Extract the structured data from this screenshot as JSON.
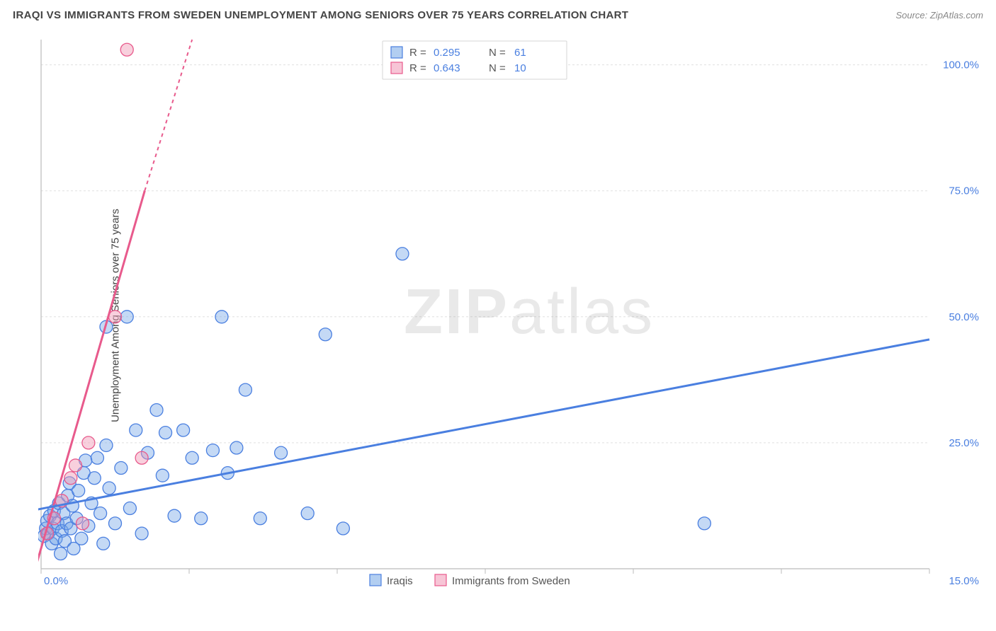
{
  "header": {
    "title": "IRAQI VS IMMIGRANTS FROM SWEDEN UNEMPLOYMENT AMONG SENIORS OVER 75 YEARS CORRELATION CHART",
    "source": "Source: ZipAtlas.com"
  },
  "watermark": {
    "bold": "ZIP",
    "rest": "atlas"
  },
  "yaxis": {
    "label": "Unemployment Among Seniors over 75 years"
  },
  "chart": {
    "type": "scatter",
    "background_color": "#ffffff",
    "grid_color": "#e0e0e0",
    "axis_color": "#bbbbbb",
    "xlim": [
      0,
      15
    ],
    "ylim": [
      0,
      105
    ],
    "x_ticks": [
      0,
      2.5,
      5,
      7.5,
      10,
      12.5,
      15
    ],
    "x_tick_labels": {
      "0": "0.0%",
      "15": "15.0%"
    },
    "y_ticks": [
      25,
      50,
      75,
      100
    ],
    "y_tick_labels": {
      "25": "25.0%",
      "50": "50.0%",
      "75": "75.0%",
      "100": "100.0%"
    },
    "origin_label": "0.0%",
    "marker_radius": 9,
    "marker_stroke_width": 1.3,
    "series": [
      {
        "name": "Iraqis",
        "color_fill": "rgba(115,165,230,0.42)",
        "color_stroke": "#4a7fe0",
        "r_value": "0.295",
        "n_value": "61",
        "trend": {
          "x1": -0.4,
          "y1": 11.0,
          "x2": 15.0,
          "y2": 45.5
        },
        "points": [
          [
            0.05,
            6.5
          ],
          [
            0.08,
            8.0
          ],
          [
            0.1,
            9.5
          ],
          [
            0.12,
            7.0
          ],
          [
            0.15,
            10.5
          ],
          [
            0.18,
            5.0
          ],
          [
            0.2,
            8.0
          ],
          [
            0.22,
            11.5
          ],
          [
            0.25,
            6.0
          ],
          [
            0.28,
            9.0
          ],
          [
            0.3,
            13.0
          ],
          [
            0.33,
            3.0
          ],
          [
            0.35,
            7.5
          ],
          [
            0.38,
            11.0
          ],
          [
            0.4,
            5.5
          ],
          [
            0.43,
            9.0
          ],
          [
            0.45,
            14.5
          ],
          [
            0.48,
            17.0
          ],
          [
            0.5,
            8.0
          ],
          [
            0.53,
            12.5
          ],
          [
            0.55,
            4.0
          ],
          [
            0.6,
            10.0
          ],
          [
            0.63,
            15.5
          ],
          [
            0.68,
            6.0
          ],
          [
            0.72,
            19.0
          ],
          [
            0.75,
            21.5
          ],
          [
            0.8,
            8.5
          ],
          [
            0.85,
            13.0
          ],
          [
            0.9,
            18.0
          ],
          [
            0.95,
            22.0
          ],
          [
            1.0,
            11.0
          ],
          [
            1.05,
            5.0
          ],
          [
            1.1,
            24.5
          ],
          [
            1.1,
            48.0
          ],
          [
            1.15,
            16.0
          ],
          [
            1.25,
            9.0
          ],
          [
            1.35,
            20.0
          ],
          [
            1.45,
            50.0
          ],
          [
            1.5,
            12.0
          ],
          [
            1.6,
            27.5
          ],
          [
            1.7,
            7.0
          ],
          [
            1.8,
            23.0
          ],
          [
            1.95,
            31.5
          ],
          [
            2.05,
            18.5
          ],
          [
            2.1,
            27.0
          ],
          [
            2.25,
            10.5
          ],
          [
            2.4,
            27.5
          ],
          [
            2.55,
            22.0
          ],
          [
            2.7,
            10.0
          ],
          [
            2.9,
            23.5
          ],
          [
            3.05,
            50.0
          ],
          [
            3.15,
            19.0
          ],
          [
            3.3,
            24.0
          ],
          [
            3.45,
            35.5
          ],
          [
            3.7,
            10.0
          ],
          [
            4.05,
            23.0
          ],
          [
            4.5,
            11.0
          ],
          [
            4.8,
            46.5
          ],
          [
            5.1,
            8.0
          ],
          [
            6.1,
            62.5
          ],
          [
            11.2,
            9.0
          ]
        ]
      },
      {
        "name": "Immigrants from Sweden",
        "color_fill": "rgba(240,150,180,0.45)",
        "color_stroke": "#e85a8c",
        "r_value": "0.643",
        "n_value": "10",
        "trend_solid": {
          "x1": -0.1,
          "y1": 0.0,
          "x2": 1.75,
          "y2": 75.0
        },
        "trend_dash": {
          "x1": 1.75,
          "y1": 75.0,
          "x2": 2.55,
          "y2": 105.0
        },
        "points": [
          [
            0.1,
            7.0
          ],
          [
            0.22,
            10.0
          ],
          [
            0.35,
            13.5
          ],
          [
            0.5,
            18.0
          ],
          [
            0.58,
            20.5
          ],
          [
            0.7,
            9.0
          ],
          [
            0.8,
            25.0
          ],
          [
            1.25,
            50.0
          ],
          [
            1.45,
            103.0
          ],
          [
            1.7,
            22.0
          ]
        ]
      }
    ],
    "stats_legend": {
      "r_label": "R =",
      "n_label": "N ="
    },
    "bottom_legend": {
      "series1": "Iraqis",
      "series2": "Immigrants from Sweden"
    }
  }
}
